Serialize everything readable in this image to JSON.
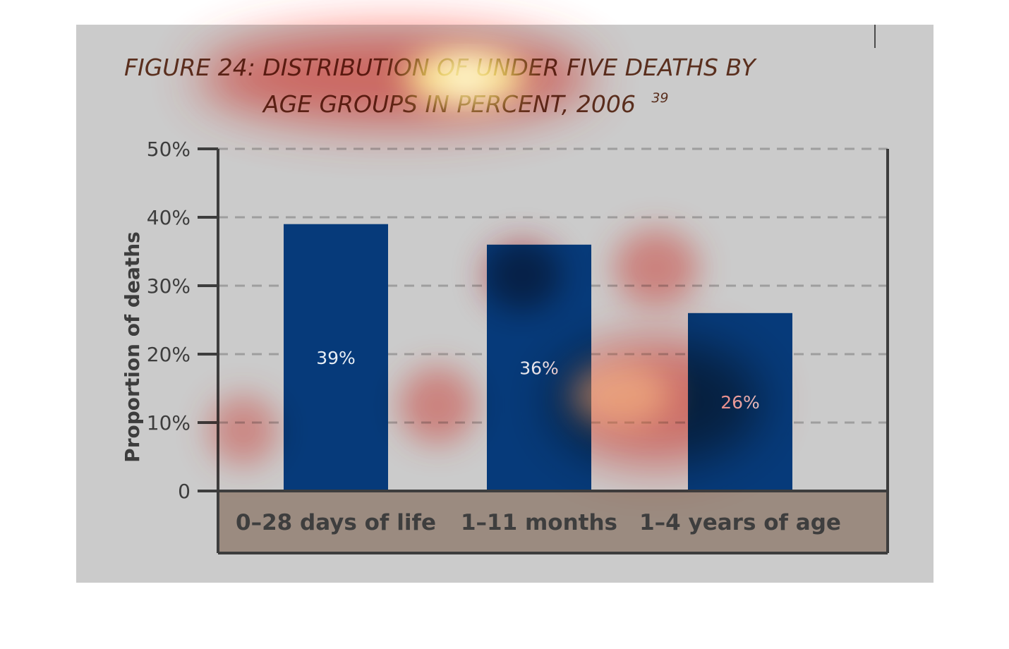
{
  "colors": {
    "background_panel": "#cbcbcb",
    "bar_fill": "#063a7a",
    "category_band": "#9b8b80",
    "axis": "#3d3d3d",
    "grid": "#9e9e9e",
    "title": "#5a2f1e"
  },
  "chart_data": {
    "type": "bar",
    "title_line1": "FIGURE 24: DISTRIBUTION OF UNDER FIVE DEATHS BY",
    "title_line2": "AGE GROUPS IN PERCENT, 2006",
    "title_superscript": "39",
    "ylabel": "Proportion of deaths",
    "xlabel": "",
    "categories": [
      "0–28 days of life",
      "1–11 months",
      "1–4 years of age"
    ],
    "values": [
      39,
      36,
      26
    ],
    "data_labels": [
      "39%",
      "36%",
      "26%"
    ],
    "ylim": [
      0,
      50
    ],
    "y_ticks": [
      0,
      10,
      20,
      30,
      40,
      50
    ],
    "y_tick_labels": [
      "0",
      "10%",
      "20%",
      "30%",
      "40%",
      "50%"
    ],
    "grid": "dashed horizontal",
    "legend": "none"
  }
}
